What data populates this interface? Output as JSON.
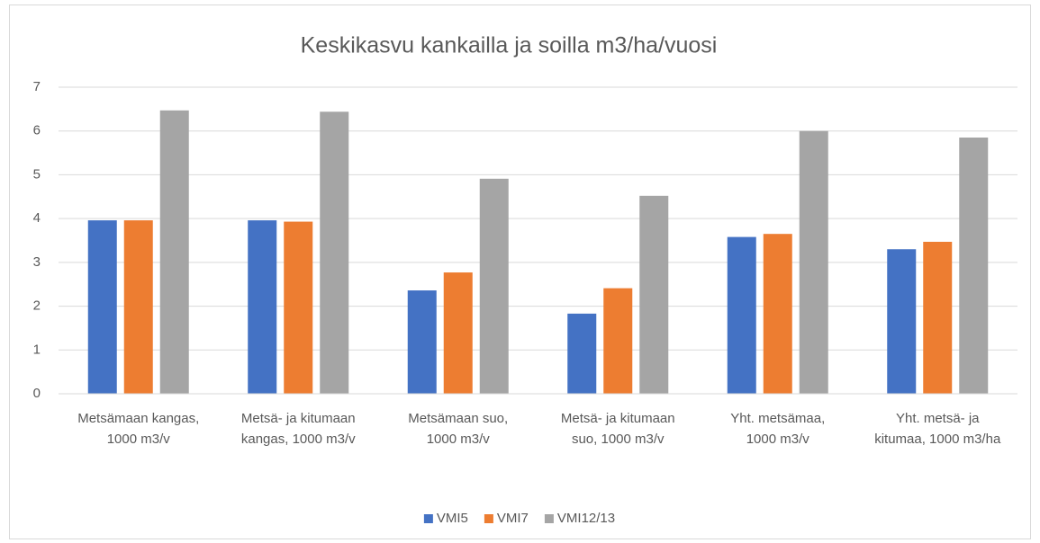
{
  "chart_data": {
    "type": "bar",
    "title": "Keskikasvu kankailla ja soilla m3/ha/vuosi",
    "categories": [
      "Metsämaan kangas, 1000 m3/v",
      "Metsä- ja kitumaan kangas, 1000 m3/v",
      "Metsämaan suo, 1000 m3/v",
      "Metsä- ja kitumaan suo, 1000 m3/v",
      "Yht. metsämaa, 1000 m3/v",
      "Yht. metsä- ja kitumaa, 1000 m3/ha"
    ],
    "series": [
      {
        "name": "VMI5",
        "color": "#4472c4",
        "values": [
          3.96,
          3.96,
          2.36,
          1.83,
          3.58,
          3.3
        ]
      },
      {
        "name": "VMI7",
        "color": "#ed7d31",
        "values": [
          3.96,
          3.93,
          2.77,
          2.41,
          3.65,
          3.47
        ]
      },
      {
        "name": "VMI12/13",
        "color": "#a5a5a5",
        "values": [
          6.47,
          6.44,
          4.91,
          4.52,
          6.0,
          5.85
        ]
      }
    ],
    "ylim": [
      0,
      7
    ],
    "yticks": [
      0,
      1,
      2,
      3,
      4,
      5,
      6,
      7
    ],
    "grid": true,
    "legend": "bottom"
  }
}
